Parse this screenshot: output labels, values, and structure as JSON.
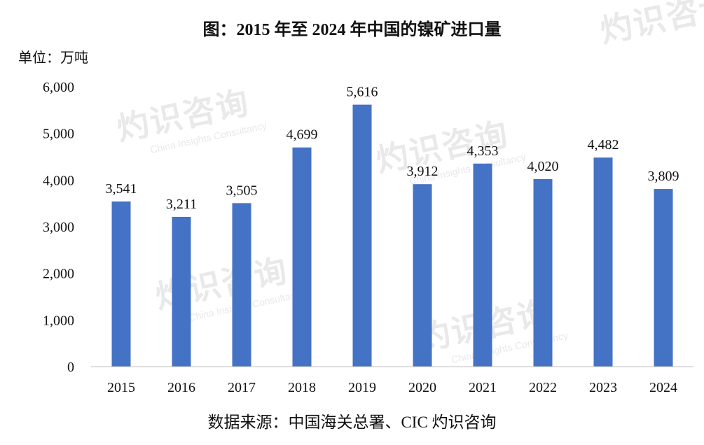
{
  "title": "图：2015 年至 2024 年中国的镍矿进口量",
  "unit_label": "单位：万吨",
  "source_note": "数据来源：中国海关总署、CIC 灼识咨询",
  "watermark": {
    "brand": "CIC",
    "cn": "灼识咨询",
    "en": "China Insights Consultancy"
  },
  "colors": {
    "bar": "#4472C4",
    "axis": "#bfbfbf",
    "text": "#111111"
  },
  "chart_data": {
    "type": "bar",
    "title": "图：2015 年至 2024 年中国的镍矿进口量",
    "ylabel": "单位：万吨",
    "xlabel": "",
    "categories": [
      "2015",
      "2016",
      "2017",
      "2018",
      "2019",
      "2020",
      "2021",
      "2022",
      "2023",
      "2024"
    ],
    "values": [
      3541,
      3211,
      3505,
      4699,
      5616,
      3912,
      4353,
      4020,
      4482,
      3809
    ],
    "value_labels": [
      "3,541",
      "3,211",
      "3,505",
      "4,699",
      "5,616",
      "3,912",
      "4,353",
      "4,020",
      "4,482",
      "3,809"
    ],
    "ylim": [
      0,
      6000
    ],
    "yticks": [
      0,
      1000,
      2000,
      3000,
      4000,
      5000,
      6000
    ],
    "ytick_labels": [
      "0",
      "1,000",
      "2,000",
      "3,000",
      "4,000",
      "5,000",
      "6,000"
    ],
    "grid": false,
    "legend": "none"
  }
}
